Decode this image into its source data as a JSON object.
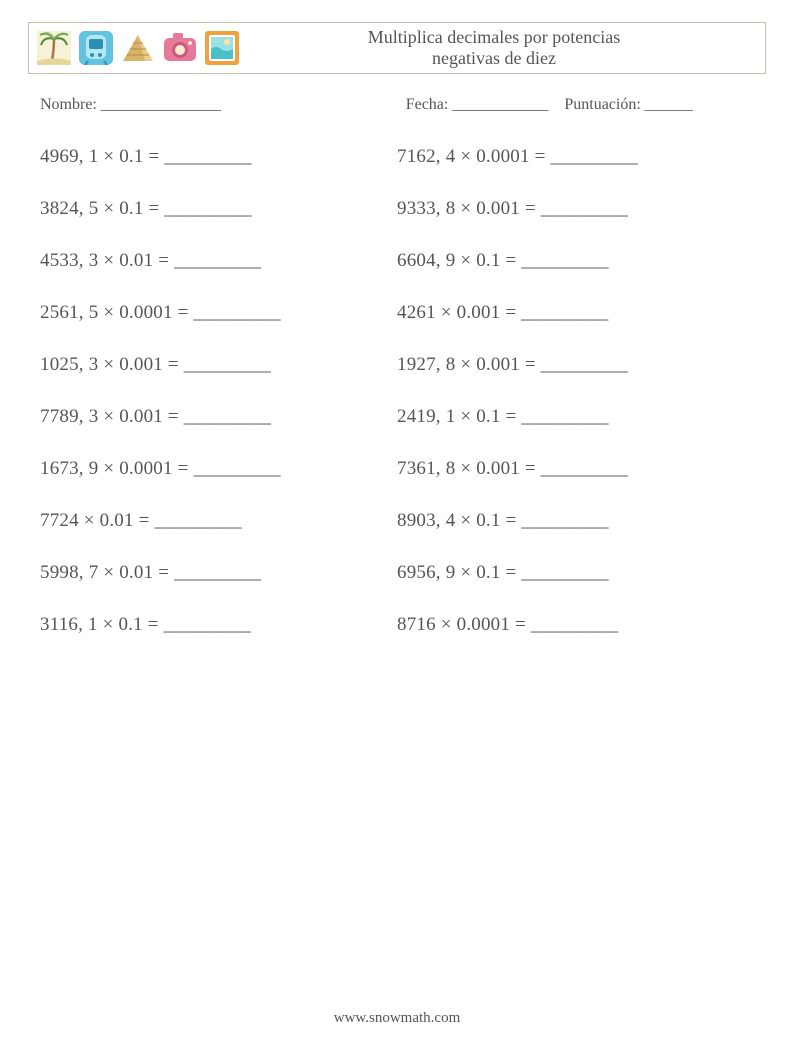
{
  "colors": {
    "background": "#ffffff",
    "text": "#555555",
    "border": "#c6bfa8"
  },
  "typography": {
    "font_family": "Georgia, 'Times New Roman', serif",
    "title_fontsize": 18,
    "body_fontsize": 19,
    "meta_fontsize": 16,
    "footer_fontsize": 15
  },
  "header": {
    "title_line1": "Multiplica decimales por potencias",
    "title_line2": "negativas de diez",
    "icons": [
      {
        "name": "palm-icon",
        "bg": "#f7f1d8",
        "accent": "#8fb06e",
        "accent2": "#a87242"
      },
      {
        "name": "train-icon",
        "bg": "#63c3de",
        "accent": "#2a90b5",
        "accent2": "#ffffff"
      },
      {
        "name": "pyramid-icon",
        "bg": "#ffffff",
        "accent": "#d7b36a",
        "accent2": "#b78d3f"
      },
      {
        "name": "camera-icon",
        "bg": "#e77a9a",
        "accent": "#c75a7e",
        "accent2": "#fdebd2"
      },
      {
        "name": "picture-icon",
        "bg": "#f2a23d",
        "accent": "#6dd0d6",
        "accent2": "#ffffff"
      }
    ]
  },
  "meta": {
    "name_label": "Nombre: _______________",
    "date_label": "Fecha: ____________",
    "score_label": "Puntuación: ______"
  },
  "blank": "_________",
  "multiply_sign": "×",
  "problems_left": [
    {
      "a": "4969, 1",
      "b": "0.1"
    },
    {
      "a": "3824, 5",
      "b": "0.1"
    },
    {
      "a": "4533, 3",
      "b": "0.01"
    },
    {
      "a": "2561, 5",
      "b": "0.0001"
    },
    {
      "a": "1025, 3",
      "b": "0.001"
    },
    {
      "a": "7789, 3",
      "b": "0.001"
    },
    {
      "a": "1673, 9",
      "b": "0.0001"
    },
    {
      "a": "7724",
      "b": "0.01"
    },
    {
      "a": "5998, 7",
      "b": "0.01"
    },
    {
      "a": "3116, 1",
      "b": "0.1"
    }
  ],
  "problems_right": [
    {
      "a": "7162, 4",
      "b": "0.0001"
    },
    {
      "a": "9333, 8",
      "b": "0.001"
    },
    {
      "a": "6604, 9",
      "b": "0.1"
    },
    {
      "a": "4261",
      "b": "0.001"
    },
    {
      "a": "1927, 8",
      "b": "0.001"
    },
    {
      "a": "2419, 1",
      "b": "0.1"
    },
    {
      "a": "7361, 8",
      "b": "0.001"
    },
    {
      "a": "8903, 4",
      "b": "0.1"
    },
    {
      "a": "6956, 9",
      "b": "0.1"
    },
    {
      "a": "8716",
      "b": "0.0001"
    }
  ],
  "footer": {
    "text": "www.snowmath.com"
  }
}
